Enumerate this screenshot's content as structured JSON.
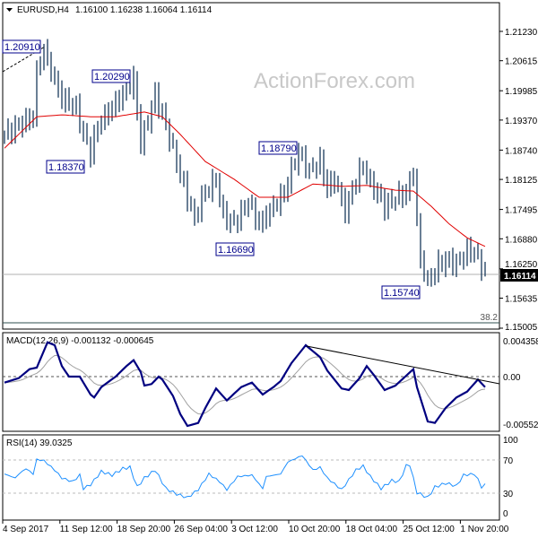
{
  "header": {
    "symbol": "EURUSD,H4",
    "ohlc": "1.16100 1.16238 1.16064 1.16114"
  },
  "watermark": "ActionForex.com",
  "current_price": "1.16114",
  "fib_label": "38.2",
  "macd": {
    "title": "MACD(12,26,9) -0.001132 -0.000645",
    "ticks": [
      "0.004358",
      "0.00",
      "-0.005528"
    ]
  },
  "rsi": {
    "title": "RSI(14) 39.0325",
    "ticks": [
      "100",
      "70",
      "30",
      "0"
    ]
  },
  "price_labels": [
    "1.20910",
    "1.20290",
    "1.18370",
    "1.18790",
    "1.16690",
    "1.15740"
  ],
  "colors": {
    "bars": "#1a3a5c",
    "ma": "#e00000",
    "macd": "#000080",
    "signal": "#a0a0a0",
    "rsi": "#1e90ff"
  },
  "chart_data": [
    {
      "type": "line",
      "title": "EURUSD,H4",
      "ylim": [
        1.15005,
        1.2123
      ],
      "yticks": [
        "1.21230",
        "1.20615",
        "1.19985",
        "1.19370",
        "1.18740",
        "1.18125",
        "1.17495",
        "1.16880",
        "1.16250",
        "1.15635",
        "1.15005"
      ],
      "xticks": [
        "4 Sep 2017",
        "11 Sep 12:00",
        "18 Sep 20:00",
        "26 Sep 04:00",
        "3 Oct 12:00",
        "10 Oct 20:00",
        "18 Oct 04:00",
        "25 Oct 12:00",
        "1 Nov 20:00"
      ],
      "series": [
        {
          "kind": "price-bars",
          "points": [
            [
              0,
              1.1907
            ],
            [
              4,
              1.1926
            ],
            [
              8,
              1.1944
            ],
            [
              9,
              1.2038
            ],
            [
              11,
              1.2085
            ],
            [
              14,
              1.202
            ],
            [
              16,
              1.1982
            ],
            [
              20,
              1.1963
            ],
            [
              22,
              1.1907
            ],
            [
              24,
              1.1869
            ],
            [
              26,
              1.1926
            ],
            [
              30,
              1.1963
            ],
            [
              34,
              1.2001
            ],
            [
              36,
              1.202
            ],
            [
              38,
              1.1888
            ],
            [
              41,
              1.1963
            ],
            [
              42,
              1.1991
            ],
            [
              45,
              1.1926
            ],
            [
              48,
              1.185
            ],
            [
              51,
              1.1775
            ],
            [
              53,
              1.1728
            ],
            [
              55,
              1.1775
            ],
            [
              59,
              1.1813
            ],
            [
              61,
              1.1737
            ],
            [
              64,
              1.1719
            ],
            [
              68,
              1.1766
            ],
            [
              71,
              1.1719
            ],
            [
              74,
              1.1747
            ],
            [
              78,
              1.1784
            ],
            [
              80,
              1.1831
            ],
            [
              82,
              1.1869
            ],
            [
              85,
              1.1831
            ],
            [
              88,
              1.185
            ],
            [
              90,
              1.1794
            ],
            [
              92,
              1.1813
            ],
            [
              95,
              1.1747
            ],
            [
              98,
              1.1813
            ],
            [
              100,
              1.1841
            ],
            [
              102,
              1.1803
            ],
            [
              104,
              1.1784
            ],
            [
              106,
              1.1756
            ],
            [
              109,
              1.1775
            ],
            [
              112,
              1.1784
            ],
            [
              114,
              1.1831
            ],
            [
              115,
              1.1719
            ],
            [
              116,
              1.1643
            ],
            [
              118,
              1.1596
            ],
            [
              121,
              1.1634
            ],
            [
              124,
              1.1643
            ],
            [
              126,
              1.1634
            ],
            [
              129,
              1.1662
            ],
            [
              131,
              1.1662
            ],
            [
              134,
              1.1615
            ]
          ]
        },
        {
          "kind": "moving-average",
          "points": [
            [
              0,
              1.1878
            ],
            [
              9,
              1.1944
            ],
            [
              16,
              1.1948
            ],
            [
              24,
              1.1944
            ],
            [
              31,
              1.1944
            ],
            [
              39,
              1.1954
            ],
            [
              44,
              1.1944
            ],
            [
              49,
              1.1907
            ],
            [
              56,
              1.185
            ],
            [
              64,
              1.1813
            ],
            [
              71,
              1.1775
            ],
            [
              79,
              1.1775
            ],
            [
              86,
              1.1803
            ],
            [
              94,
              1.1798
            ],
            [
              101,
              1.18
            ],
            [
              109,
              1.179
            ],
            [
              114,
              1.1788
            ],
            [
              119,
              1.1756
            ],
            [
              124,
              1.1719
            ],
            [
              129,
              1.169
            ],
            [
              134,
              1.1672
            ]
          ]
        }
      ]
    },
    {
      "type": "line",
      "title": "MACD(12,26,9)",
      "ylim": [
        -0.005528,
        0.004358
      ],
      "series": [
        {
          "name": "MACD",
          "points": [
            [
              0,
              -0.00069
            ],
            [
              4,
              -0.00017
            ],
            [
              7,
              0.00086
            ],
            [
              9,
              0.00103
            ],
            [
              12,
              0.00394
            ],
            [
              14,
              0.0036
            ],
            [
              16,
              0.0012
            ],
            [
              18,
              0
            ],
            [
              21,
              0
            ],
            [
              24,
              -0.00206
            ],
            [
              25,
              -0.0024
            ],
            [
              27,
              -0.0012
            ],
            [
              31,
              0
            ],
            [
              34,
              0.0012
            ],
            [
              36,
              0.00189
            ],
            [
              38,
              0.00051
            ],
            [
              39,
              -0.00103
            ],
            [
              41,
              -0.00086
            ],
            [
              43,
              0
            ],
            [
              44,
              -0.00034
            ],
            [
              47,
              -0.00223
            ],
            [
              49,
              -0.00429
            ],
            [
              51,
              -0.00566
            ],
            [
              54,
              -0.00532
            ],
            [
              56,
              -0.0036
            ],
            [
              59,
              -0.00137
            ],
            [
              62,
              -0.00274
            ],
            [
              66,
              -0.0012
            ],
            [
              69,
              -0.00069
            ],
            [
              72,
              -0.00206
            ],
            [
              75,
              -0.0012
            ],
            [
              77,
              -0.00051
            ],
            [
              80,
              0.00154
            ],
            [
              84,
              0.0036
            ],
            [
              88,
              0.00223
            ],
            [
              90,
              0.00069
            ],
            [
              94,
              -0.00137
            ],
            [
              96,
              -0.00154
            ],
            [
              99,
              -0.00017
            ],
            [
              101,
              0.0012
            ],
            [
              103,
              0.00017
            ],
            [
              106,
              -0.00154
            ],
            [
              109,
              -0.00103
            ],
            [
              114,
              0.00086
            ],
            [
              115,
              -0.0012
            ],
            [
              118,
              -0.00515
            ],
            [
              120,
              -0.00532
            ],
            [
              123,
              -0.0036
            ],
            [
              126,
              -0.0024
            ],
            [
              129,
              -0.00172
            ],
            [
              132,
              -0.00034
            ],
            [
              134,
              -0.0012
            ]
          ]
        }
      ]
    },
    {
      "type": "line",
      "title": "RSI(14)",
      "ylim": [
        0,
        100
      ],
      "levels": [
        70,
        30
      ],
      "series": [
        {
          "name": "RSI(14)",
          "points": [
            [
              0,
              53.6
            ],
            [
              3,
              48
            ],
            [
              4,
              53.6
            ],
            [
              6,
              61
            ],
            [
              8,
              53.6
            ],
            [
              9,
              73.6
            ],
            [
              11,
              72
            ],
            [
              14,
              59
            ],
            [
              16,
              48
            ],
            [
              19,
              43
            ],
            [
              21,
              52
            ],
            [
              22,
              33.6
            ],
            [
              24,
              39
            ],
            [
              27,
              57
            ],
            [
              30,
              52
            ],
            [
              33,
              61
            ],
            [
              35,
              62.7
            ],
            [
              37,
              35.5
            ],
            [
              39,
              48
            ],
            [
              42,
              59
            ],
            [
              45,
              33.6
            ],
            [
              48,
              26
            ],
            [
              51,
              21
            ],
            [
              54,
              32
            ],
            [
              57,
              53.6
            ],
            [
              60,
              43
            ],
            [
              62,
              32
            ],
            [
              65,
              50
            ],
            [
              69,
              52
            ],
            [
              72,
              33.6
            ],
            [
              73,
              50
            ],
            [
              77,
              53.6
            ],
            [
              79,
              70
            ],
            [
              83,
              79
            ],
            [
              86,
              59
            ],
            [
              88,
              62.7
            ],
            [
              90,
              48
            ],
            [
              94,
              32
            ],
            [
              98,
              59
            ],
            [
              100,
              64.5
            ],
            [
              102,
              50
            ],
            [
              105,
              33.6
            ],
            [
              108,
              44.5
            ],
            [
              110,
              42.7
            ],
            [
              112,
              64.5
            ],
            [
              113,
              66.4
            ],
            [
              115,
              28
            ],
            [
              118,
              21
            ],
            [
              120,
              35.5
            ],
            [
              123,
              41
            ],
            [
              126,
              37
            ],
            [
              128,
              52
            ],
            [
              131,
              53.6
            ],
            [
              132,
              46
            ],
            [
              133,
              35.5
            ],
            [
              134,
              39
            ]
          ]
        }
      ]
    }
  ]
}
